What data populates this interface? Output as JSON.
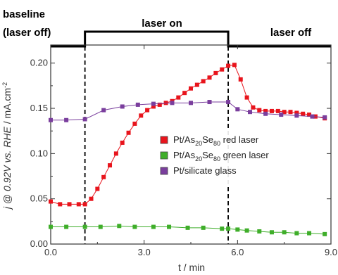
{
  "chart_data": {
    "type": "scatter",
    "xlabel": "t / min",
    "ylabel": "j @ 0.92V vs. RHE / mA.cm-2",
    "xlim": [
      0,
      9
    ],
    "ylim": [
      0,
      0.22
    ],
    "x_ticks": [
      "0.0",
      "3.0",
      "6.0",
      "9.0"
    ],
    "y_ticks": [
      "0.00",
      "0.05",
      "0.10",
      "0.15",
      "0.20"
    ],
    "annotations": {
      "baseline_line1": "baseline",
      "baseline_line2": "(laser off)",
      "laser_on": "laser on",
      "laser_off": "laser off"
    },
    "laser_on_start": 1.1,
    "laser_on_end": 5.7,
    "series": [
      {
        "name": "Pt/As20Se80 red laser",
        "color": "#e8141c",
        "x": [
          0.0,
          0.3,
          0.6,
          0.9,
          1.1,
          1.3,
          1.5,
          1.7,
          1.9,
          2.1,
          2.3,
          2.5,
          2.7,
          2.9,
          3.1,
          3.3,
          3.5,
          3.7,
          3.9,
          4.1,
          4.3,
          4.5,
          4.7,
          4.9,
          5.1,
          5.3,
          5.5,
          5.7,
          5.9,
          6.1,
          6.3,
          6.5,
          6.7,
          6.9,
          7.1,
          7.3,
          7.5,
          7.7,
          7.9,
          8.1,
          8.3,
          8.5,
          8.8
        ],
        "y": [
          0.047,
          0.044,
          0.044,
          0.044,
          0.044,
          0.05,
          0.061,
          0.074,
          0.087,
          0.1,
          0.112,
          0.123,
          0.133,
          0.142,
          0.148,
          0.152,
          0.154,
          0.156,
          0.158,
          0.162,
          0.167,
          0.172,
          0.176,
          0.18,
          0.184,
          0.189,
          0.193,
          0.197,
          0.198,
          0.182,
          0.162,
          0.151,
          0.148,
          0.147,
          0.147,
          0.147,
          0.146,
          0.146,
          0.145,
          0.144,
          0.143,
          0.141,
          0.139
        ]
      },
      {
        "name": "Pt/As20Se80 green laser",
        "color": "#3fae2a",
        "x": [
          0.0,
          0.5,
          1.1,
          1.6,
          2.2,
          2.7,
          3.3,
          3.8,
          4.4,
          4.9,
          5.5,
          5.7,
          6.0,
          6.3,
          6.7,
          7.1,
          7.5,
          7.9,
          8.3,
          8.8
        ],
        "y": [
          0.019,
          0.019,
          0.019,
          0.019,
          0.02,
          0.019,
          0.019,
          0.019,
          0.018,
          0.018,
          0.017,
          0.017,
          0.016,
          0.015,
          0.014,
          0.013,
          0.013,
          0.012,
          0.012,
          0.011
        ]
      },
      {
        "name": "Pt/silicate glass",
        "color": "#7a3e9d",
        "x": [
          0.0,
          0.5,
          1.1,
          1.7,
          2.3,
          2.8,
          3.3,
          3.9,
          4.5,
          5.1,
          5.7,
          6.0,
          6.4,
          6.9,
          7.4,
          7.9,
          8.4,
          8.8
        ],
        "y": [
          0.137,
          0.137,
          0.138,
          0.148,
          0.152,
          0.154,
          0.155,
          0.156,
          0.156,
          0.157,
          0.157,
          0.149,
          0.146,
          0.144,
          0.143,
          0.142,
          0.141,
          0.14
        ]
      }
    ],
    "legend": {
      "placement": "center-right",
      "entries": [
        {
          "prefix": "Pt/As",
          "sub1": "20",
          "mid": "Se",
          "sub2": "80",
          "suffix": " red laser"
        },
        {
          "prefix": "Pt/As",
          "sub1": "20",
          "mid": "Se",
          "sub2": "80",
          "suffix": " green laser"
        },
        {
          "prefix": "Pt/silicate glass",
          "sub1": "",
          "mid": "",
          "sub2": "",
          "suffix": ""
        }
      ]
    },
    "ylabel_parts": {
      "j": "j",
      "at": " @ ",
      "volt": "0.92V vs. ",
      "rhe": "RHE",
      "rest": " / mA.cm",
      "exp": "-2"
    }
  }
}
